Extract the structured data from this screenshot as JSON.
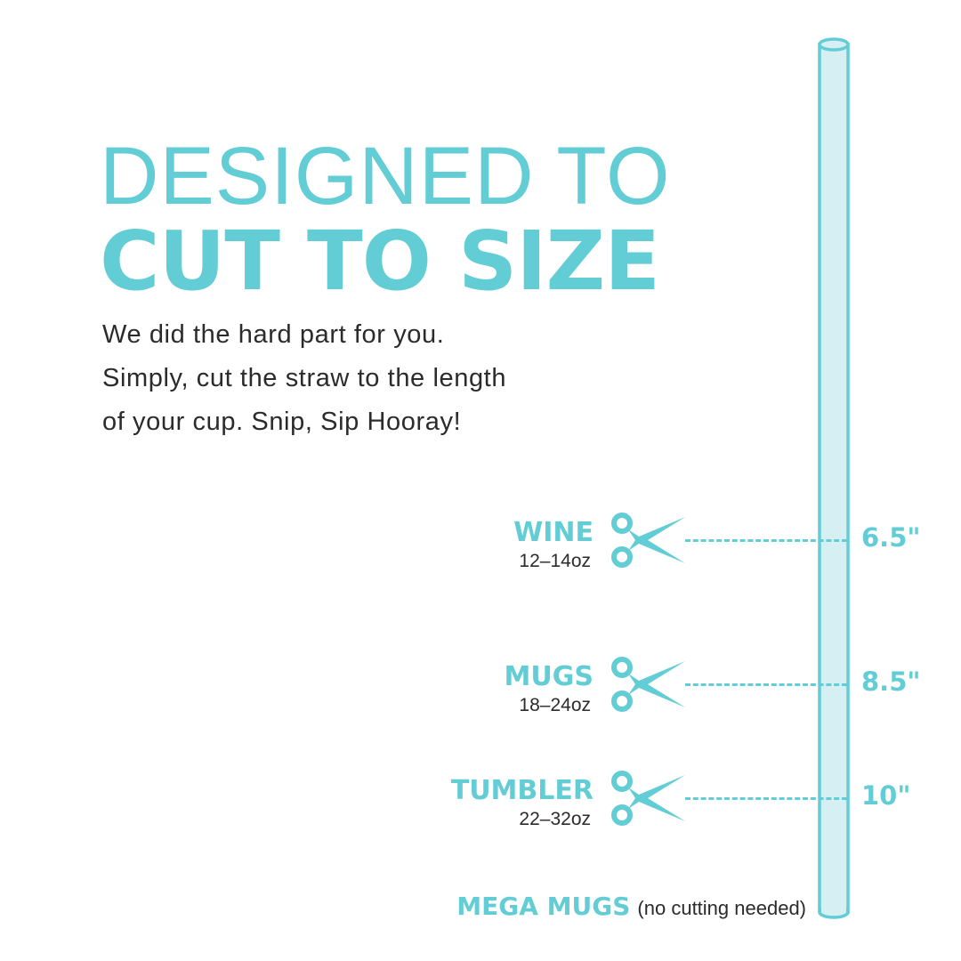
{
  "title": {
    "line1": "DESIGNED TO",
    "line2": "CUT TO SIZE"
  },
  "body": [
    "We did the hard part for you.",
    "Simply, cut the straw to the length",
    "of your cup. Snip, Sip Hooray!"
  ],
  "cuts": [
    {
      "label": "WINE",
      "size": "12–14oz",
      "length": "6.5\""
    },
    {
      "label": "MUGS",
      "size": "18–24oz",
      "length": "8.5\""
    },
    {
      "label": "TUMBLER",
      "size": "22–32oz",
      "length": "10\""
    }
  ],
  "mega": {
    "label": "MEGA MUGS",
    "note": "(no cutting needed)"
  },
  "colors": {
    "accent": "#62CDD5",
    "straw_fill": "#D6EFF3",
    "text": "#2b2b2b"
  },
  "icons": {
    "cut": "scissors-icon",
    "straw": "straw-illustration"
  }
}
